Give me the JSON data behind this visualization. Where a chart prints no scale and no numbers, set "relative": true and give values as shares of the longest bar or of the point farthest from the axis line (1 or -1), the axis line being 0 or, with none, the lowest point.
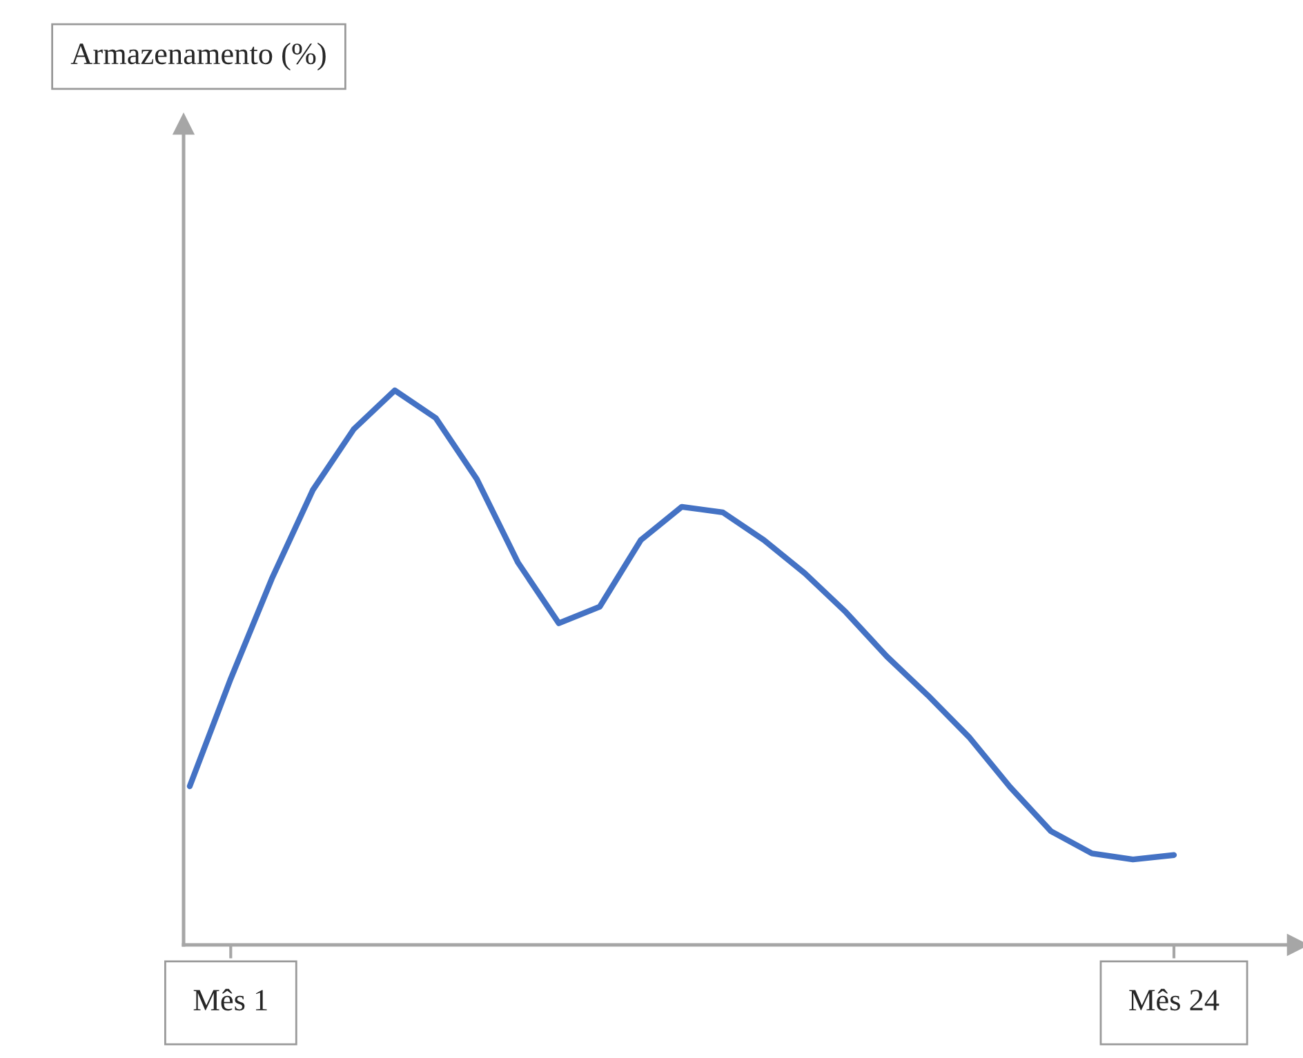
{
  "chart_data": {
    "type": "line",
    "relative": true,
    "annotations": [
      "Armazenamento (%)"
    ],
    "categories": [
      null,
      "Mês 1",
      null,
      null,
      null,
      null,
      null,
      null,
      null,
      null,
      null,
      null,
      null,
      null,
      null,
      null,
      null,
      null,
      null,
      null,
      null,
      null,
      null,
      null,
      "Mês 24"
    ],
    "series": [
      {
        "color": "#4472c4",
        "values": [
          0.286,
          0.48,
          0.66,
          0.82,
          0.93,
          1,
          0.95,
          0.84,
          0.69,
          0.58,
          0.61,
          0.73,
          0.79,
          0.78,
          0.73,
          0.67,
          0.6,
          0.52,
          0.45,
          0.375,
          0.285,
          0.205,
          0.165,
          0.154,
          0.162
        ]
      }
    ],
    "grid": false,
    "legend": false,
    "marker": "none",
    "line_style": "solid"
  }
}
